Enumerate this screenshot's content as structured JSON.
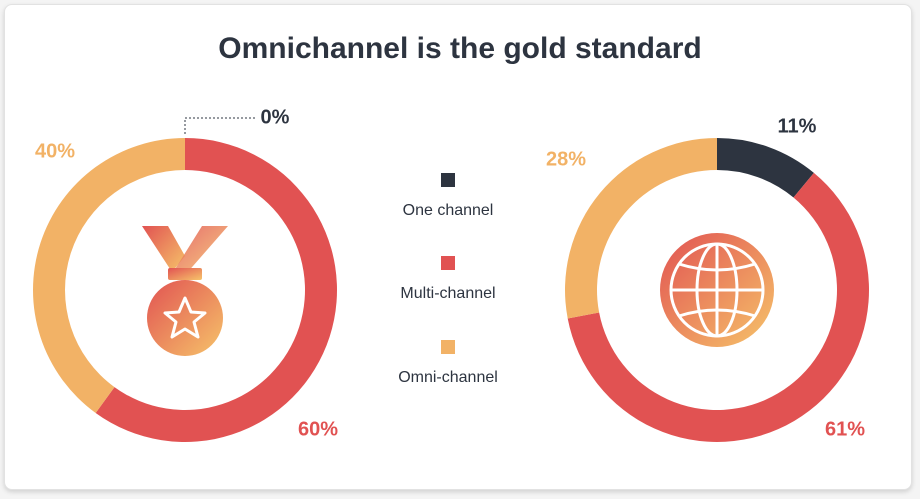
{
  "title": "Omnichannel is the gold standard",
  "categories": [
    "One channel",
    "Multi-channel",
    "Omni-channel"
  ],
  "colors": [
    "#2d3440",
    "#e15252",
    "#f2b266"
  ],
  "chart_data": [
    {
      "type": "pie",
      "donut": true,
      "values": [
        0,
        60,
        40
      ],
      "value_labels": [
        "0%",
        "60%",
        "40%"
      ]
    },
    {
      "type": "pie",
      "donut": true,
      "values": [
        11,
        61,
        28
      ],
      "value_labels": [
        "11%",
        "61%",
        "28%"
      ]
    }
  ]
}
